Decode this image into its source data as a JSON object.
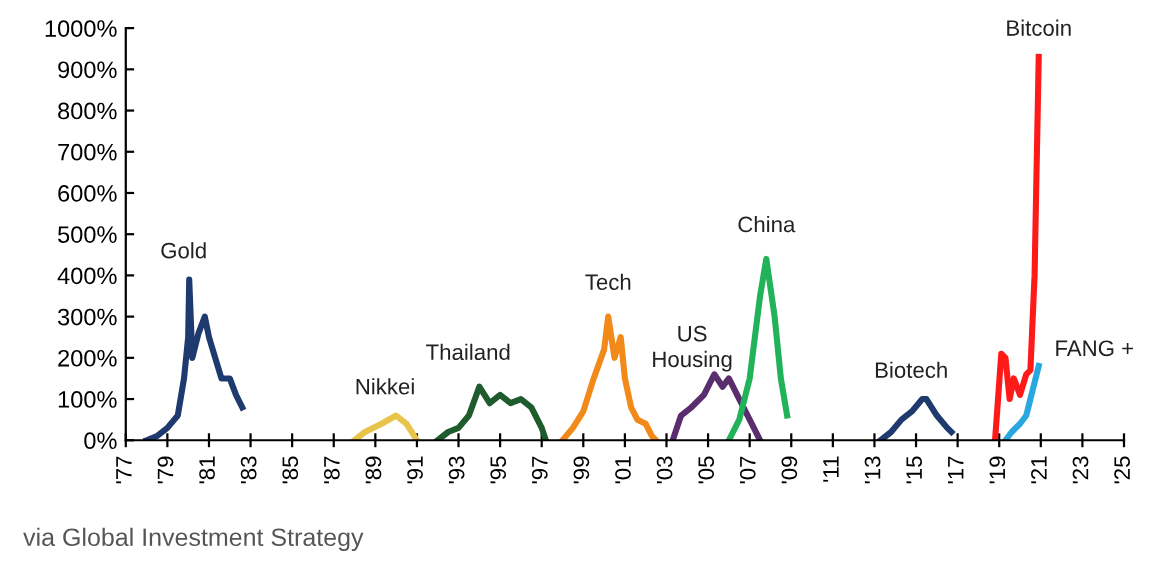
{
  "chart_data": {
    "type": "line",
    "annotations": [
      "via Global Investment Strategy"
    ],
    "xlim": [
      1977,
      2025
    ],
    "xticks": [
      {
        "value": 1977,
        "label": "'77"
      },
      {
        "value": 1979,
        "label": "'79"
      },
      {
        "value": 1981,
        "label": "'81"
      },
      {
        "value": 1983,
        "label": "'83"
      },
      {
        "value": 1985,
        "label": "'85"
      },
      {
        "value": 1987,
        "label": "'87"
      },
      {
        "value": 1989,
        "label": "'89"
      },
      {
        "value": 1991,
        "label": "'91"
      },
      {
        "value": 1993,
        "label": "'93"
      },
      {
        "value": 1995,
        "label": "'95"
      },
      {
        "value": 1997,
        "label": "'97"
      },
      {
        "value": 1999,
        "label": "'99"
      },
      {
        "value": 2001,
        "label": "'01"
      },
      {
        "value": 2003,
        "label": "'03"
      },
      {
        "value": 2005,
        "label": "'05"
      },
      {
        "value": 2007,
        "label": "'07"
      },
      {
        "value": 2009,
        "label": "'09"
      },
      {
        "value": 2011,
        "label": "'11"
      },
      {
        "value": 2013,
        "label": "'13"
      },
      {
        "value": 2015,
        "label": "'15"
      },
      {
        "value": 2017,
        "label": "'17"
      },
      {
        "value": 2019,
        "label": "'19"
      },
      {
        "value": 2021,
        "label": "'21"
      },
      {
        "value": 2023,
        "label": "'23"
      },
      {
        "value": 2025,
        "label": "'25"
      }
    ],
    "ylim": [
      0,
      1000
    ],
    "yticks": [
      {
        "value": 0,
        "label": "0%"
      },
      {
        "value": 100,
        "label": "100%"
      },
      {
        "value": 200,
        "label": "200%"
      },
      {
        "value": 300,
        "label": "300%"
      },
      {
        "value": 400,
        "label": "400%"
      },
      {
        "value": 500,
        "label": "500%"
      },
      {
        "value": 600,
        "label": "600%"
      },
      {
        "value": 700,
        "label": "700%"
      },
      {
        "value": 800,
        "label": "800%"
      },
      {
        "value": 900,
        "label": "900%"
      },
      {
        "value": 1000,
        "label": "1000%"
      }
    ],
    "grid": false,
    "legend": false,
    "series": [
      {
        "name": "Gold",
        "color": "#1f3a6e",
        "x": [
          1978.0,
          1978.5,
          1979.0,
          1979.5,
          1979.8,
          1980.0,
          1980.05,
          1980.2,
          1980.5,
          1980.8,
          1981.0,
          1981.3,
          1981.6,
          1982.0,
          1982.3,
          1982.6
        ],
        "values": [
          0,
          10,
          30,
          60,
          150,
          250,
          390,
          200,
          260,
          300,
          250,
          200,
          150,
          150,
          110,
          80
        ]
      },
      {
        "name": "Nikkei",
        "color": "#e8c44a",
        "x": [
          1988.0,
          1988.5,
          1989.3,
          1990.0,
          1990.5,
          1991.0
        ],
        "values": [
          0,
          20,
          40,
          60,
          40,
          0
        ]
      },
      {
        "name": "Thailand",
        "color": "#1e5c2e",
        "x": [
          1992.0,
          1992.5,
          1993.0,
          1993.5,
          1994.0,
          1994.5,
          1995.0,
          1995.5,
          1996.0,
          1996.5,
          1997.0,
          1997.2
        ],
        "values": [
          0,
          20,
          30,
          60,
          130,
          90,
          110,
          90,
          100,
          80,
          30,
          0
        ]
      },
      {
        "name": "Tech",
        "color": "#f28a1a",
        "x": [
          1998.0,
          1998.5,
          1999.0,
          1999.5,
          2000.0,
          2000.2,
          2000.5,
          2000.8,
          2001.0,
          2001.3,
          2001.6,
          2002.0,
          2002.3,
          2002.5
        ],
        "values": [
          0,
          30,
          70,
          150,
          220,
          300,
          200,
          250,
          150,
          80,
          50,
          40,
          10,
          0
        ]
      },
      {
        "name": "US\nHousing",
        "color": "#5a2d6e",
        "x": [
          2003.3,
          2003.7,
          2004.2,
          2004.8,
          2005.3,
          2005.7,
          2006.0,
          2006.5,
          2007.0,
          2007.5
        ],
        "values": [
          0,
          60,
          80,
          110,
          160,
          130,
          150,
          100,
          50,
          0
        ]
      },
      {
        "name": "China",
        "color": "#22b35a",
        "x": [
          2006.0,
          2006.5,
          2007.0,
          2007.5,
          2007.8,
          2008.2,
          2008.5,
          2008.8
        ],
        "values": [
          0,
          50,
          150,
          350,
          440,
          300,
          150,
          60
        ]
      },
      {
        "name": "Biotech",
        "color": "#1f3a6e",
        "x": [
          2013.3,
          2013.8,
          2014.3,
          2014.8,
          2015.3,
          2015.5,
          2016.0,
          2016.5,
          2016.7
        ],
        "values": [
          0,
          20,
          50,
          70,
          100,
          100,
          60,
          30,
          20
        ]
      },
      {
        "name": "Bitcoin",
        "color": "#ff1a1a",
        "x": [
          2018.8,
          2019.1,
          2019.3,
          2019.5,
          2019.7,
          2020.0,
          2020.3,
          2020.5,
          2020.7,
          2020.9
        ],
        "values": [
          0,
          210,
          200,
          100,
          150,
          110,
          160,
          170,
          400,
          930
        ]
      },
      {
        "name": "FANG +",
        "color": "#29a8e0",
        "x": [
          2019.3,
          2019.6,
          2020.0,
          2020.3,
          2020.6,
          2020.9
        ],
        "values": [
          0,
          20,
          40,
          60,
          120,
          180
        ]
      }
    ]
  }
}
